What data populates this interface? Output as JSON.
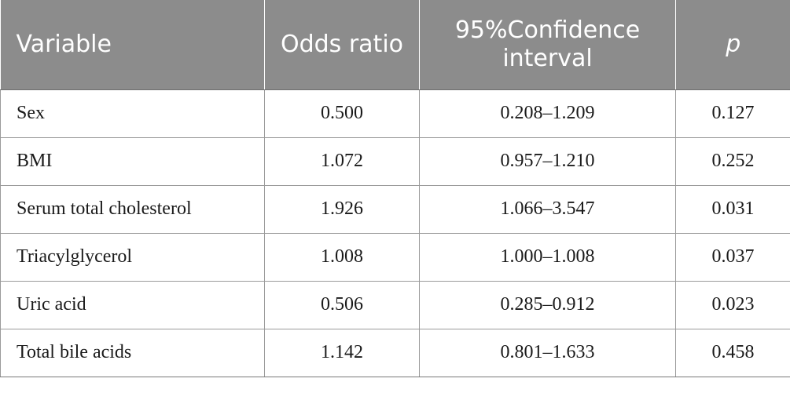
{
  "table": {
    "headers": {
      "variable": "Variable",
      "odds_ratio": "Odds ratio",
      "confidence_interval": "95%Confidence interval",
      "p": "p"
    },
    "rows": [
      {
        "variable": "Sex",
        "odds_ratio": "0.500",
        "ci": "0.208–1.209",
        "p": "0.127"
      },
      {
        "variable": "BMI",
        "odds_ratio": "1.072",
        "ci": "0.957–1.210",
        "p": "0.252"
      },
      {
        "variable": "Serum total cholesterol",
        "odds_ratio": "1.926",
        "ci": "1.066–3.547",
        "p": "0.031"
      },
      {
        "variable": "Triacylglycerol",
        "odds_ratio": "1.008",
        "ci": "1.000–1.008",
        "p": "0.037"
      },
      {
        "variable": "Uric acid",
        "odds_ratio": "0.506",
        "ci": "0.285–0.912",
        "p": "0.023"
      },
      {
        "variable": "Total bile acids",
        "odds_ratio": "1.142",
        "ci": "0.801–1.633",
        "p": "0.458"
      }
    ]
  }
}
